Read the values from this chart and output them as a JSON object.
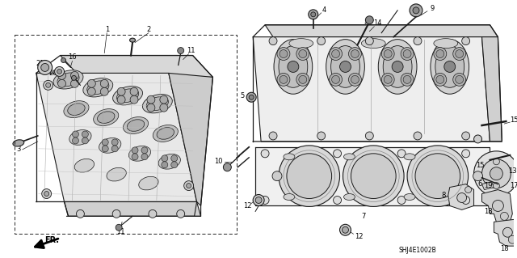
{
  "bg_color": "#ffffff",
  "diagram_code": "SHJ4E1002B",
  "line_color": "#1a1a1a",
  "gray_fill": "#e0e0e0",
  "dark_gray": "#888888",
  "light_gray": "#f0f0f0"
}
